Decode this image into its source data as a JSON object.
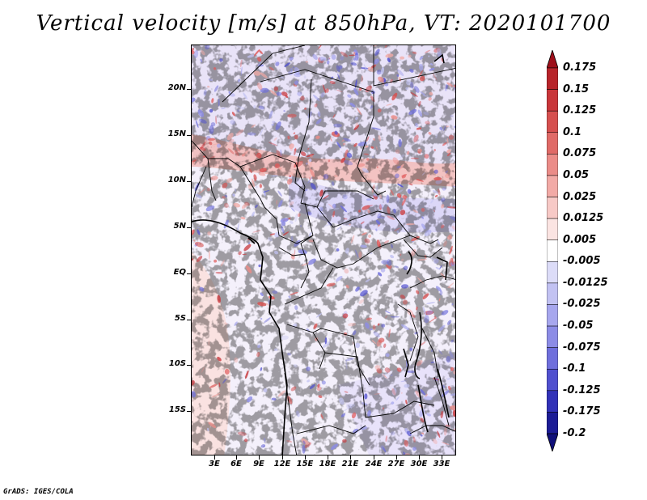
{
  "title": "Vertical velocity [m/s] at 850hPa, VT: 2020101700",
  "credit": "GrADS: IGES/COLA",
  "y_axis_labels": [
    "20N",
    "15N",
    "10N",
    "5N",
    "EQ",
    "5S",
    "10S",
    "15S"
  ],
  "x_axis_labels": [
    "3E",
    "6E",
    "9E",
    "12E",
    "15E",
    "18E",
    "21E",
    "24E",
    "27E",
    "30E",
    "33E"
  ],
  "colorbar": {
    "labels": [
      "0.175",
      "0.15",
      "0.125",
      "0.1",
      "0.075",
      "0.05",
      "0.025",
      "0.0125",
      "0.005",
      "-0.005",
      "-0.0125",
      "-0.025",
      "-0.05",
      "-0.075",
      "-0.1",
      "-0.125",
      "-0.175",
      "-0.2"
    ],
    "colors": [
      "#9e0f1a",
      "#b8242a",
      "#c9363a",
      "#d6504f",
      "#e06a67",
      "#eb8c88",
      "#f2aaa6",
      "#f7c9c6",
      "#fbe4e2",
      "#ffffff",
      "#dcdcf8",
      "#c2c2f2",
      "#a7a7ee",
      "#8c8ce6",
      "#6f6fdc",
      "#5050cf",
      "#3232b8",
      "#1c1c96",
      "#10107a"
    ]
  },
  "icons": [
    "colorbar-up-arrow-icon",
    "colorbar-down-arrow-icon"
  ]
}
